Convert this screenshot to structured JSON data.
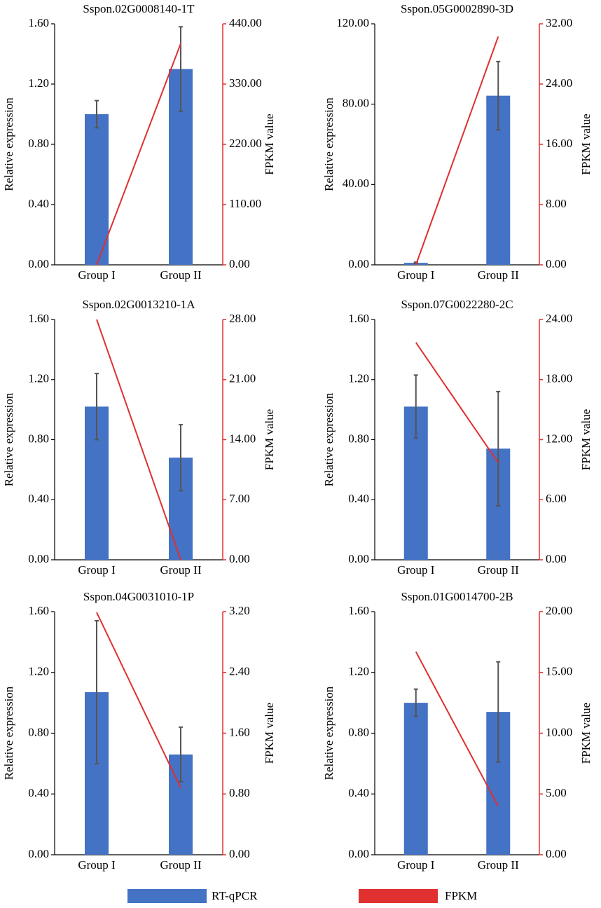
{
  "chart_data": [
    {
      "type": "combo",
      "title": "Sspon.02G0008140-1T",
      "ylabel": "Relative expression",
      "y2label": "FPKM value",
      "categories": [
        "Group I",
        "Group II"
      ],
      "series": [
        {
          "name": "RT-qPCR",
          "color": "#4472c4",
          "values": [
            1.0,
            1.3
          ],
          "errors": [
            0.09,
            0.28
          ]
        },
        {
          "name": "FPKM",
          "color": "#e03030",
          "axis": "y2",
          "values": [
            0,
            404
          ]
        }
      ],
      "ylim": [
        0,
        1.6
      ],
      "yticks": [
        {
          "value": 0,
          "label": "0.00"
        },
        {
          "value": 0.4,
          "label": "0.40"
        },
        {
          "value": 0.8,
          "label": "0.80"
        },
        {
          "value": 1.2,
          "label": "1.20"
        },
        {
          "value": 1.6,
          "label": "1.60"
        }
      ],
      "y2lim": [
        0,
        440
      ],
      "y2ticks": [
        {
          "value": 0,
          "label": "0.00"
        },
        {
          "value": 110,
          "label": "110.00"
        },
        {
          "value": 220,
          "label": "220.00"
        },
        {
          "value": 330,
          "label": "330.00"
        },
        {
          "value": 440,
          "label": "440.00"
        }
      ]
    },
    {
      "type": "combo",
      "title": "Sspon.05G0002890-3D",
      "ylabel": "Relative expression",
      "y2label": "FPKM value",
      "categories": [
        "Group I",
        "Group II"
      ],
      "series": [
        {
          "name": "RT-qPCR",
          "color": "#4472c4",
          "values": [
            1.0,
            84.2
          ],
          "errors": [
            0.3,
            17
          ]
        },
        {
          "name": "FPKM",
          "color": "#e03030",
          "axis": "y2",
          "values": [
            0,
            30.3
          ]
        }
      ],
      "ylim": [
        0,
        120
      ],
      "yticks": [
        {
          "value": 0,
          "label": "0.00"
        },
        {
          "value": 40,
          "label": "40.00"
        },
        {
          "value": 80,
          "label": "80.00"
        },
        {
          "value": 120,
          "label": "120.00"
        }
      ],
      "y2lim": [
        0,
        32
      ],
      "y2ticks": [
        {
          "value": 0,
          "label": "0.00"
        },
        {
          "value": 8,
          "label": "8.00"
        },
        {
          "value": 16,
          "label": "16.00"
        },
        {
          "value": 24,
          "label": "24.00"
        },
        {
          "value": 32,
          "label": "32.00"
        }
      ]
    },
    {
      "type": "combo",
      "title": "Sspon.02G0013210-1A",
      "ylabel": "Relative expression",
      "y2label": "FPKM value",
      "categories": [
        "Group I",
        "Group II"
      ],
      "series": [
        {
          "name": "RT-qPCR",
          "color": "#4472c4",
          "values": [
            1.02,
            0.68
          ],
          "errors": [
            0.22,
            0.22
          ]
        },
        {
          "name": "FPKM",
          "color": "#e03030",
          "axis": "y2",
          "values": [
            28,
            0
          ]
        }
      ],
      "ylim": [
        0,
        1.6
      ],
      "yticks": [
        {
          "value": 0,
          "label": "0.00"
        },
        {
          "value": 0.4,
          "label": "0.40"
        },
        {
          "value": 0.8,
          "label": "0.80"
        },
        {
          "value": 1.2,
          "label": "1.20"
        },
        {
          "value": 1.6,
          "label": "1.60"
        }
      ],
      "y2lim": [
        0,
        28
      ],
      "y2ticks": [
        {
          "value": 0,
          "label": "0.00"
        },
        {
          "value": 7,
          "label": "7.00"
        },
        {
          "value": 14,
          "label": "14.00"
        },
        {
          "value": 21,
          "label": "21.00"
        },
        {
          "value": 28,
          "label": "28.00"
        }
      ]
    },
    {
      "type": "combo",
      "title": "Sspon.07G0022280-2C",
      "ylabel": "Relative expression",
      "y2label": "FPKM value",
      "categories": [
        "Group I",
        "Group II"
      ],
      "series": [
        {
          "name": "RT-qPCR",
          "color": "#4472c4",
          "values": [
            1.02,
            0.74
          ],
          "errors": [
            0.21,
            0.38
          ]
        },
        {
          "name": "FPKM",
          "color": "#e03030",
          "axis": "y2",
          "values": [
            21.7,
            9.7
          ]
        }
      ],
      "ylim": [
        0,
        1.6
      ],
      "yticks": [
        {
          "value": 0,
          "label": "0.00"
        },
        {
          "value": 0.4,
          "label": "0.40"
        },
        {
          "value": 0.8,
          "label": "0.80"
        },
        {
          "value": 1.2,
          "label": "1.20"
        },
        {
          "value": 1.6,
          "label": "1.60"
        }
      ],
      "y2lim": [
        0,
        24
      ],
      "y2ticks": [
        {
          "value": 0,
          "label": "0.00"
        },
        {
          "value": 6,
          "label": "6.00"
        },
        {
          "value": 12,
          "label": "12.00"
        },
        {
          "value": 18,
          "label": "18.00"
        },
        {
          "value": 24,
          "label": "24.00"
        }
      ]
    },
    {
      "type": "combo",
      "title": "Sspon.04G0031010-1P",
      "ylabel": "Relative expression",
      "y2label": "FPKM value",
      "categories": [
        "Group I",
        "Group II"
      ],
      "series": [
        {
          "name": "RT-qPCR",
          "color": "#4472c4",
          "values": [
            1.07,
            0.66
          ],
          "errors": [
            0.47,
            0.18
          ]
        },
        {
          "name": "FPKM",
          "color": "#e03030",
          "axis": "y2",
          "values": [
            3.19,
            0.88
          ]
        }
      ],
      "ylim": [
        0,
        1.6
      ],
      "yticks": [
        {
          "value": 0,
          "label": "0.00"
        },
        {
          "value": 0.4,
          "label": "0.40"
        },
        {
          "value": 0.8,
          "label": "0.80"
        },
        {
          "value": 1.2,
          "label": "1.20"
        },
        {
          "value": 1.6,
          "label": "1.60"
        }
      ],
      "y2lim": [
        0,
        3.2
      ],
      "y2ticks": [
        {
          "value": 0,
          "label": "0.00"
        },
        {
          "value": 0.8,
          "label": "0.80"
        },
        {
          "value": 1.6,
          "label": "1.60"
        },
        {
          "value": 2.4,
          "label": "2.40"
        },
        {
          "value": 3.2,
          "label": "3.20"
        }
      ]
    },
    {
      "type": "combo",
      "title": "Sspon.01G0014700-2B",
      "ylabel": "Relative expression",
      "y2label": "FPKM value",
      "categories": [
        "Group I",
        "Group II"
      ],
      "series": [
        {
          "name": "RT-qPCR",
          "color": "#4472c4",
          "values": [
            1.0,
            0.94
          ],
          "errors": [
            0.09,
            0.33
          ]
        },
        {
          "name": "FPKM",
          "color": "#e03030",
          "axis": "y2",
          "values": [
            16.7,
            4.0
          ]
        }
      ],
      "ylim": [
        0,
        1.6
      ],
      "yticks": [
        {
          "value": 0,
          "label": "0.00"
        },
        {
          "value": 0.4,
          "label": "0.40"
        },
        {
          "value": 0.8,
          "label": "0.80"
        },
        {
          "value": 1.2,
          "label": "1.20"
        },
        {
          "value": 1.6,
          "label": "1.60"
        }
      ],
      "y2lim": [
        0,
        20
      ],
      "y2ticks": [
        {
          "value": 0,
          "label": "0.00"
        },
        {
          "value": 5,
          "label": "5.00"
        },
        {
          "value": 10,
          "label": "10.00"
        },
        {
          "value": 15,
          "label": "15.00"
        },
        {
          "value": 20,
          "label": "20.00"
        }
      ]
    }
  ]
}
